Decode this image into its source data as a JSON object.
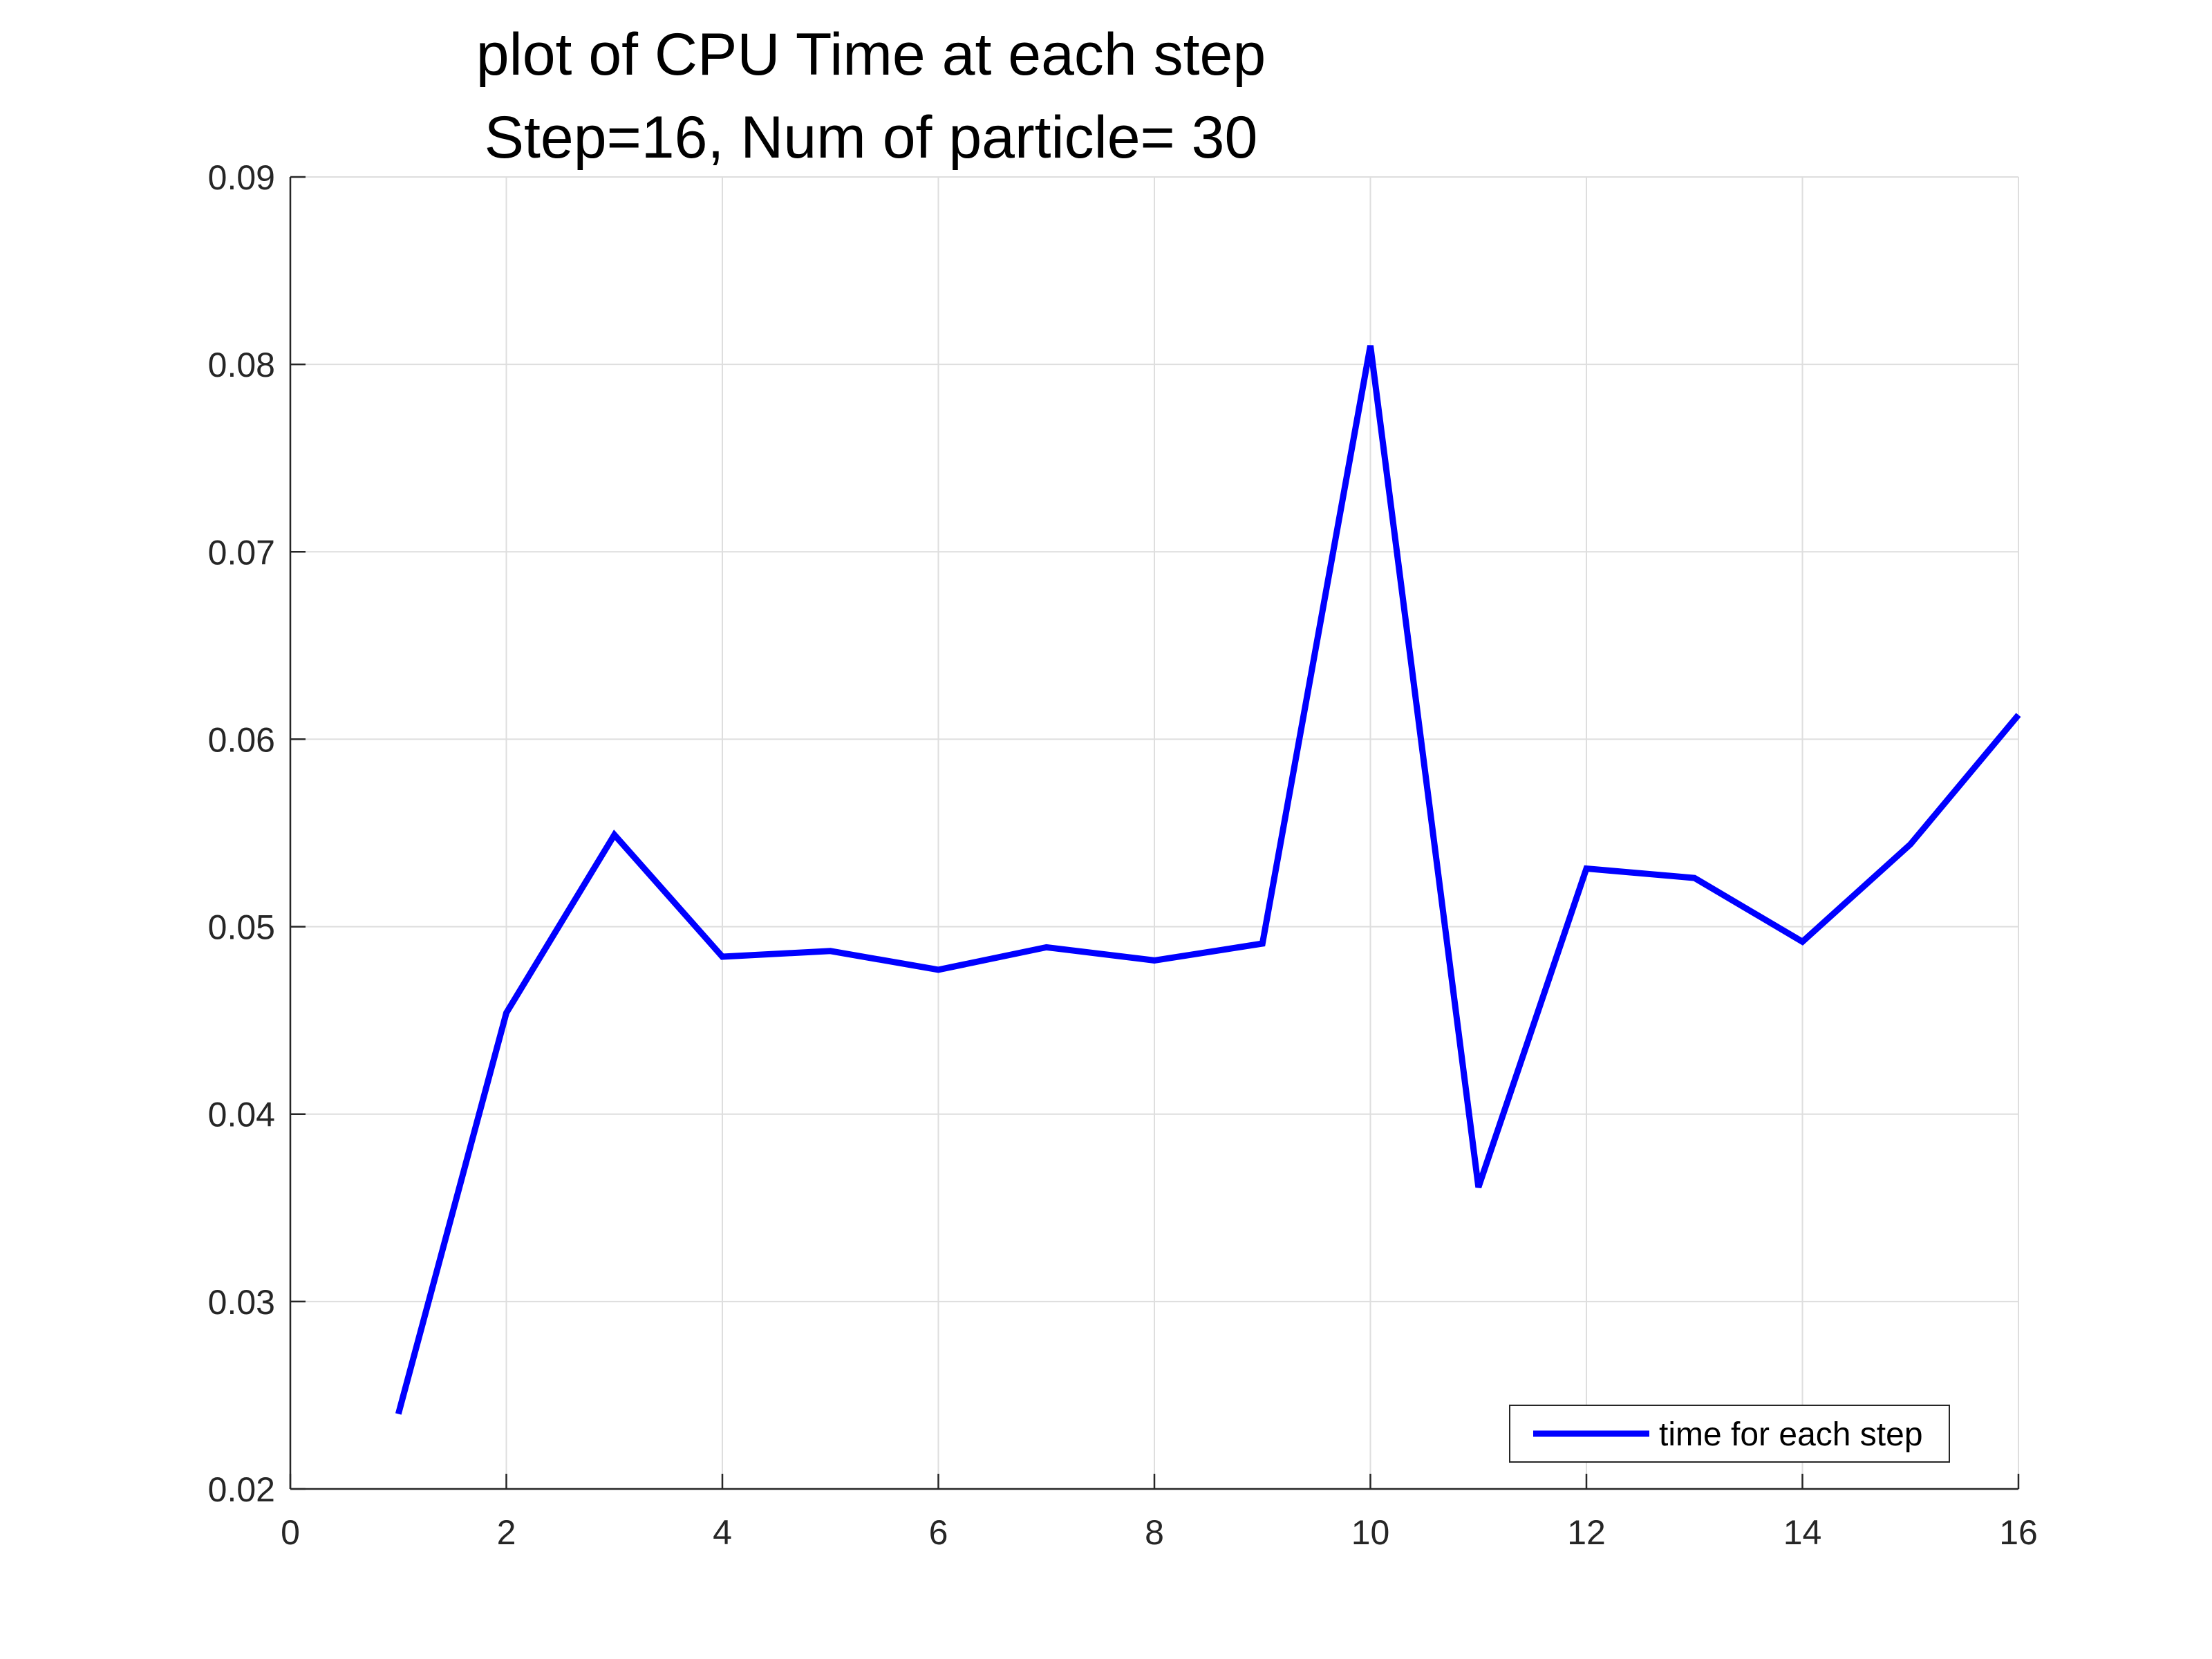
{
  "chart_data": {
    "type": "line",
    "title": [
      "plot of CPU Time at each step",
      "Step=16, Num of particle= 30"
    ],
    "xlabel": "",
    "ylabel": "",
    "xlim": [
      0,
      16
    ],
    "ylim": [
      0.02,
      0.09
    ],
    "xticks": [
      0,
      2,
      4,
      6,
      8,
      10,
      12,
      14,
      16
    ],
    "xtick_labels": [
      "0",
      "2",
      "4",
      "6",
      "8",
      "10",
      "12",
      "14",
      "16"
    ],
    "yticks": [
      0.02,
      0.03,
      0.04,
      0.05,
      0.06,
      0.07,
      0.08,
      0.09
    ],
    "ytick_labels": [
      "0.02",
      "0.03",
      "0.04",
      "0.05",
      "0.06",
      "0.07",
      "0.08",
      "0.09"
    ],
    "grid": true,
    "legend_position": "bottom-right",
    "series": [
      {
        "name": "time for each step",
        "color": "#0000ff",
        "x": [
          1,
          2,
          3,
          4,
          5,
          6,
          7,
          8,
          9,
          10,
          11,
          12,
          13,
          14,
          15,
          16
        ],
        "y": [
          0.024,
          0.0454,
          0.0549,
          0.0484,
          0.0487,
          0.0477,
          0.0489,
          0.0482,
          0.0491,
          0.081,
          0.0361,
          0.0531,
          0.0526,
          0.0492,
          0.0544,
          0.0613
        ]
      }
    ]
  }
}
